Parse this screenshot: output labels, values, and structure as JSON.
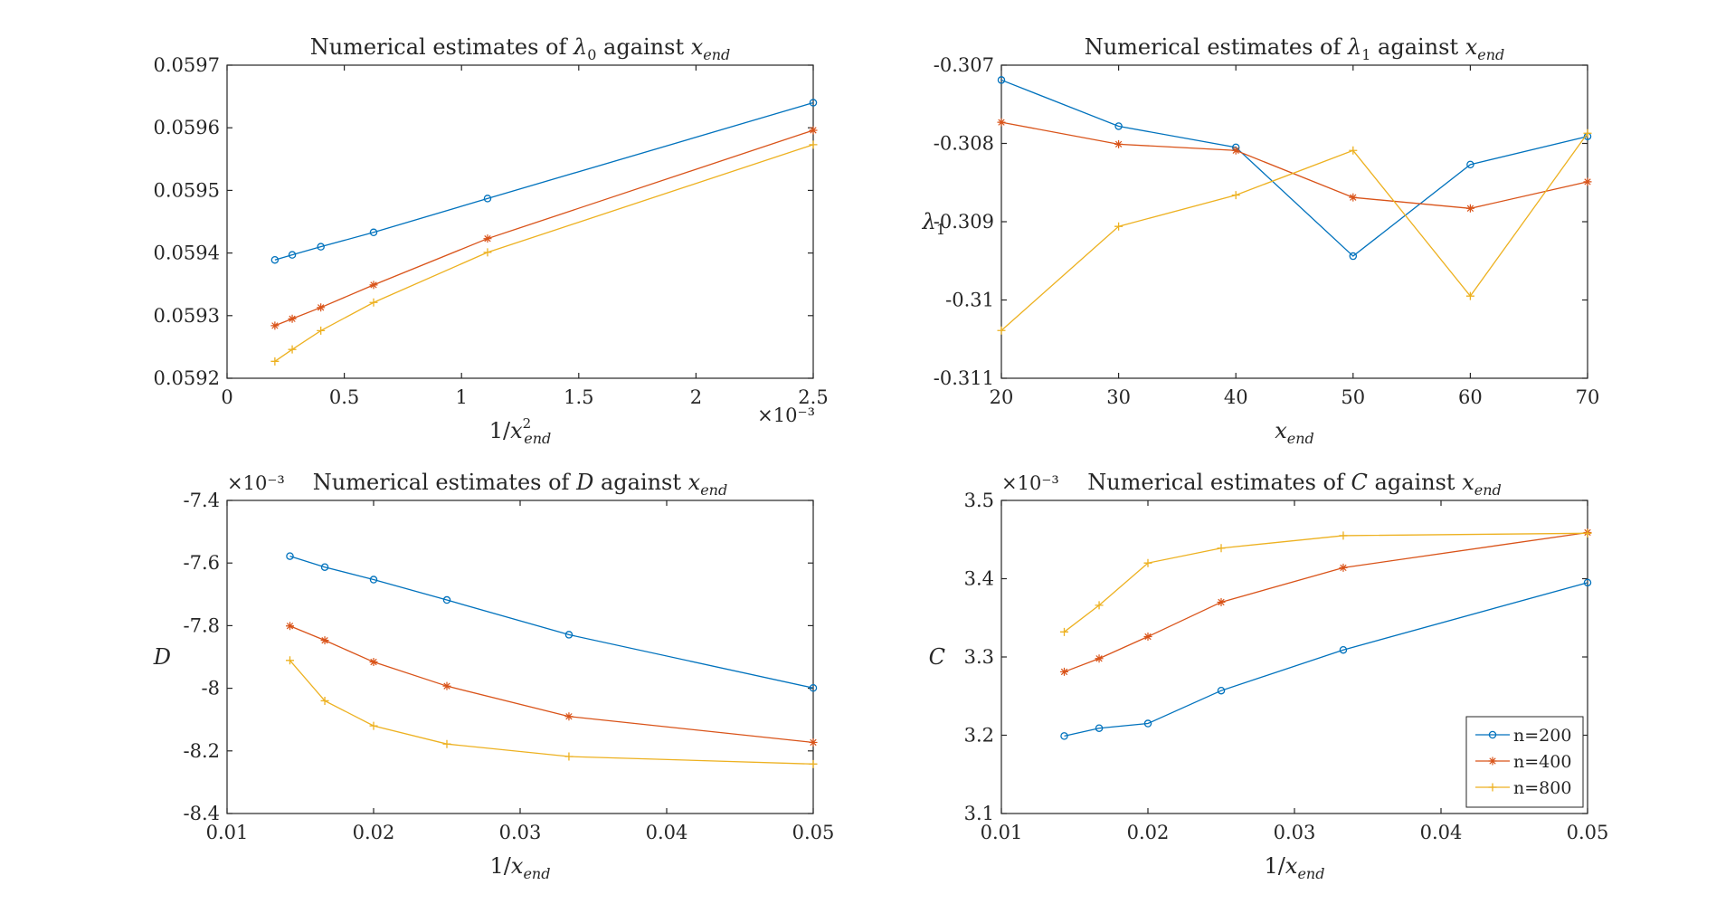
{
  "series_styles": [
    {
      "color": "#0072BD",
      "marker": "circle"
    },
    {
      "color": "#D95319",
      "marker": "asterisk"
    },
    {
      "color": "#EDB120",
      "marker": "plus"
    }
  ],
  "legend": {
    "placement": "bottom-right of bottom-right panel",
    "entries": [
      "n=200",
      "n=400",
      "n=800"
    ]
  },
  "chart_data": [
    {
      "type": "line",
      "title": "Numerical estimates of λ0 against xend",
      "title_parts": {
        "pre": "Numerical estimates of ",
        "sym": "λ",
        "sub": "0",
        "post": " against ",
        "sym2": "x",
        "sub2": "end"
      },
      "xlabel": "1/x_end^2",
      "xlabel_parts": {
        "pre": "1/",
        "sym": "x",
        "sup": "2",
        "sub": "end"
      },
      "ylabel": "",
      "x_exponent": "×10⁻³",
      "y_exponent": "",
      "xlim": [
        0,
        0.0025
      ],
      "ylim": [
        0.0592,
        0.0597
      ],
      "xticks": [
        0,
        0.0005,
        0.001,
        0.0015,
        0.002,
        0.0025
      ],
      "xtick_labels": [
        "0",
        "0.5",
        "1",
        "1.5",
        "2",
        "2.5"
      ],
      "yticks": [
        0.0592,
        0.0593,
        0.0594,
        0.0595,
        0.0596,
        0.0597
      ],
      "ytick_labels": [
        "0.0592",
        "0.0593",
        "0.0594",
        "0.0595",
        "0.0596",
        "0.0597"
      ],
      "x": [
        0.000204,
        0.000278,
        0.0004,
        0.000625,
        0.001111,
        0.0025
      ],
      "series": [
        {
          "name": "n=200",
          "values": [
            0.059389,
            0.059397,
            0.05941,
            0.059433,
            0.059487,
            0.05964
          ]
        },
        {
          "name": "n=400",
          "values": [
            0.059284,
            0.059295,
            0.059313,
            0.059349,
            0.059423,
            0.059596
          ]
        },
        {
          "name": "n=800",
          "values": [
            0.059227,
            0.059246,
            0.059276,
            0.059321,
            0.059401,
            0.059573
          ]
        }
      ]
    },
    {
      "type": "line",
      "title": "Numerical estimates of λ1 against xend",
      "title_parts": {
        "pre": "Numerical estimates of ",
        "sym": "λ",
        "sub": "1",
        "post": " against ",
        "sym2": "x",
        "sub2": "end"
      },
      "xlabel": "x_end",
      "xlabel_parts": {
        "pre": "",
        "sym": "x",
        "sup": "",
        "sub": "end"
      },
      "ylabel": "λ1",
      "ylabel_parts": {
        "sym": "λ",
        "sub": "1"
      },
      "x_exponent": "",
      "y_exponent": "",
      "xlim": [
        20,
        70
      ],
      "ylim": [
        -0.311,
        -0.307
      ],
      "xticks": [
        20,
        30,
        40,
        50,
        60,
        70
      ],
      "xtick_labels": [
        "20",
        "30",
        "40",
        "50",
        "60",
        "70"
      ],
      "yticks": [
        -0.311,
        -0.31,
        -0.309,
        -0.308,
        -0.307
      ],
      "ytick_labels": [
        "-0.311",
        "-0.31",
        "-0.309",
        "-0.308",
        "-0.307"
      ],
      "x": [
        20,
        30,
        40,
        50,
        60,
        70
      ],
      "series": [
        {
          "name": "n=200",
          "values": [
            -0.30719,
            -0.30778,
            -0.30805,
            -0.30944,
            -0.30827,
            -0.30791
          ]
        },
        {
          "name": "n=400",
          "values": [
            -0.30773,
            -0.30801,
            -0.30809,
            -0.30869,
            -0.30883,
            -0.30849
          ]
        },
        {
          "name": "n=800",
          "values": [
            -0.31039,
            -0.30906,
            -0.30866,
            -0.30809,
            -0.30995,
            -0.30787
          ]
        }
      ]
    },
    {
      "type": "line",
      "title": "Numerical estimates of D against xend",
      "title_parts": {
        "pre": "Numerical estimates of ",
        "sym": "D",
        "sub": "",
        "post": " against ",
        "sym2": "x",
        "sub2": "end"
      },
      "xlabel": "1/x_end",
      "xlabel_parts": {
        "pre": "1/",
        "sym": "x",
        "sup": "",
        "sub": "end"
      },
      "ylabel": "D",
      "ylabel_parts": {
        "sym": "D",
        "sub": ""
      },
      "x_exponent": "",
      "y_exponent": "×10⁻³",
      "xlim": [
        0.01,
        0.05
      ],
      "ylim": [
        -8.4,
        -7.4
      ],
      "xticks": [
        0.01,
        0.02,
        0.03,
        0.04,
        0.05
      ],
      "xtick_labels": [
        "0.01",
        "0.02",
        "0.03",
        "0.04",
        "0.05"
      ],
      "yticks": [
        -8.4,
        -8.2,
        -8.0,
        -7.8,
        -7.6,
        -7.4
      ],
      "ytick_labels": [
        "-8.4",
        "-8.2",
        "-8",
        "-7.8",
        "-7.6",
        "-7.4"
      ],
      "x": [
        0.01429,
        0.01667,
        0.02,
        0.025,
        0.03333,
        0.05
      ],
      "series": [
        {
          "name": "n=200",
          "values": [
            -7.578,
            -7.613,
            -7.653,
            -7.718,
            -7.829,
            -7.999
          ]
        },
        {
          "name": "n=400",
          "values": [
            -7.801,
            -7.847,
            -7.916,
            -7.993,
            -8.09,
            -8.173
          ]
        },
        {
          "name": "n=800",
          "values": [
            -7.911,
            -8.04,
            -8.12,
            -8.178,
            -8.218,
            -8.242
          ]
        }
      ]
    },
    {
      "type": "line",
      "title": "Numerical estimates of C against xend",
      "title_parts": {
        "pre": "Numerical estimates of ",
        "sym": "C",
        "sub": "",
        "post": " against ",
        "sym2": "x",
        "sub2": "end"
      },
      "xlabel": "1/x_end",
      "xlabel_parts": {
        "pre": "1/",
        "sym": "x",
        "sup": "",
        "sub": "end"
      },
      "ylabel": "C",
      "ylabel_parts": {
        "sym": "C",
        "sub": ""
      },
      "x_exponent": "",
      "y_exponent": "×10⁻³",
      "xlim": [
        0.01,
        0.05
      ],
      "ylim": [
        3.1,
        3.5
      ],
      "xticks": [
        0.01,
        0.02,
        0.03,
        0.04,
        0.05
      ],
      "xtick_labels": [
        "0.01",
        "0.02",
        "0.03",
        "0.04",
        "0.05"
      ],
      "yticks": [
        3.1,
        3.2,
        3.3,
        3.4,
        3.5
      ],
      "ytick_labels": [
        "3.1",
        "3.2",
        "3.3",
        "3.4",
        "3.5"
      ],
      "x": [
        0.01429,
        0.01667,
        0.02,
        0.025,
        0.03333,
        0.05
      ],
      "series": [
        {
          "name": "n=200",
          "values": [
            3.199,
            3.209,
            3.215,
            3.257,
            3.309,
            3.395
          ]
        },
        {
          "name": "n=400",
          "values": [
            3.281,
            3.298,
            3.326,
            3.37,
            3.414,
            3.459
          ]
        },
        {
          "name": "n=800",
          "values": [
            3.332,
            3.366,
            3.42,
            3.439,
            3.455,
            3.458
          ]
        }
      ]
    }
  ]
}
